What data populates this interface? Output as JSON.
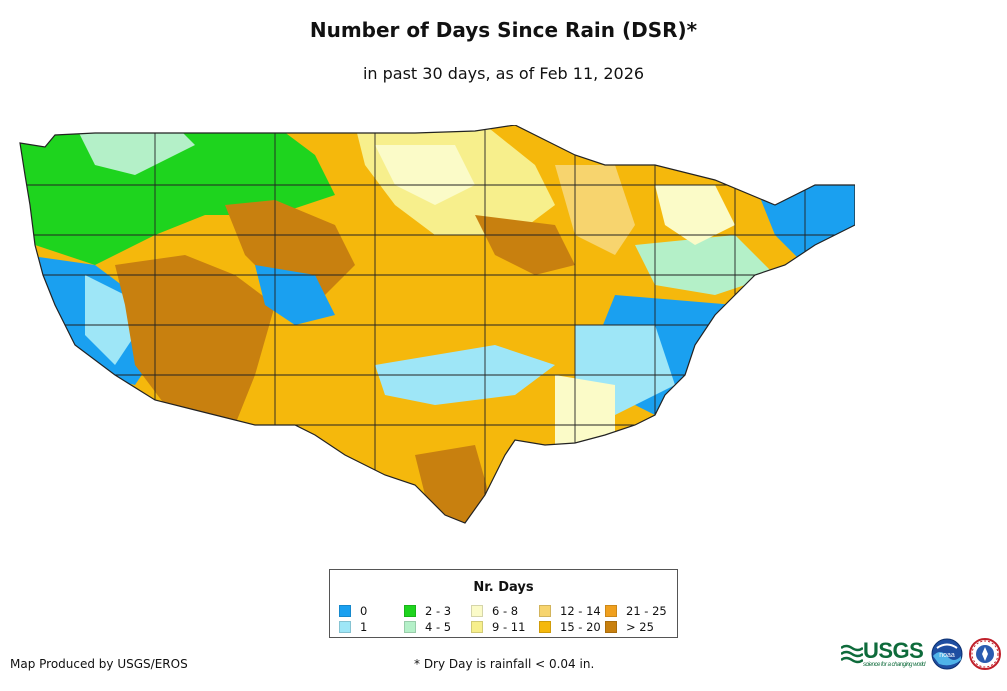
{
  "title": "Number of Days Since Rain (DSR)*",
  "subtitle": "in past 30 days, as of Feb 11, 2026",
  "legend": {
    "title": "Nr. Days",
    "items": [
      {
        "label": "0",
        "color": "#1aa0f0"
      },
      {
        "label": "1",
        "color": "#9ee6f7"
      },
      {
        "label": "2 - 3",
        "color": "#1ed41e"
      },
      {
        "label": "4 - 5",
        "color": "#b4f0c8"
      },
      {
        "label": "6 - 8",
        "color": "#fbfbc8"
      },
      {
        "label": "9 - 11",
        "color": "#f7ef8c"
      },
      {
        "label": "12 - 14",
        "color": "#f7d46e"
      },
      {
        "label": "15 - 20",
        "color": "#f5b80c"
      },
      {
        "label": "21 - 25",
        "color": "#f0a01e"
      },
      {
        "label": "> 25",
        "color": "#c8800f"
      }
    ]
  },
  "footer": {
    "producer": "Map Produced by USGS/EROS",
    "note": "* Dry Day is rainfall < 0.04 in."
  },
  "logos": {
    "usgs": "USGS",
    "usgs_tagline": "science for a changing world",
    "noaa": "noaa"
  }
}
